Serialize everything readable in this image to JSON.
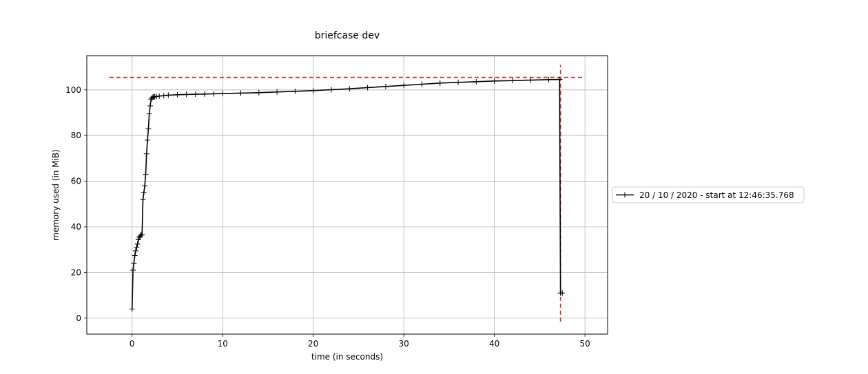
{
  "chart_data": {
    "type": "line",
    "title": "briefcase dev",
    "xlabel": "time (in seconds)",
    "ylabel": "memory used (in MiB)",
    "xlim": [
      -5,
      52.5
    ],
    "ylim": [
      -7,
      115
    ],
    "xticks": [
      0,
      10,
      20,
      30,
      40,
      50
    ],
    "yticks": [
      0,
      20,
      40,
      60,
      80,
      100
    ],
    "grid": true,
    "legend": {
      "position": "right",
      "entries": [
        "20 / 10 / 2020 - start at 12:46:35.768"
      ]
    },
    "colors": {
      "series": "#000000",
      "reference": "#d62728",
      "grid": "#b0b0b0"
    },
    "series": [
      {
        "name": "20 / 10 / 2020 - start at 12:46:35.768",
        "marker": "plus",
        "x": [
          0.0,
          0.1,
          0.2,
          0.3,
          0.4,
          0.5,
          0.6,
          0.7,
          0.8,
          0.9,
          1.0,
          1.1,
          1.2,
          1.3,
          1.4,
          1.5,
          1.6,
          1.7,
          1.8,
          1.9,
          2.0,
          2.1,
          2.2,
          2.3,
          2.4,
          2.5,
          2.7,
          3.0,
          3.5,
          4.0,
          5.0,
          6.0,
          7.0,
          8.0,
          9.0,
          10.0,
          12.0,
          14.0,
          16.0,
          18.0,
          20.0,
          22.0,
          24.0,
          26.0,
          28.0,
          30.0,
          32.0,
          34.0,
          36.0,
          38.0,
          40.0,
          42.0,
          44.0,
          46.0,
          47.2,
          47.3,
          47.5
        ],
        "y": [
          4.0,
          21.0,
          24.0,
          27.5,
          29.5,
          31.0,
          32.5,
          34.5,
          35.5,
          36.0,
          36.5,
          36.5,
          52.0,
          55.0,
          58.0,
          63.0,
          72.0,
          78.0,
          83.0,
          89.5,
          93.0,
          96.0,
          96.5,
          96.8,
          97.0,
          97.0,
          97.1,
          97.3,
          97.5,
          97.7,
          97.9,
          98.0,
          98.1,
          98.2,
          98.3,
          98.4,
          98.6,
          98.8,
          99.1,
          99.4,
          99.7,
          100.1,
          100.5,
          101.0,
          101.5,
          102.0,
          102.5,
          103.0,
          103.3,
          103.6,
          103.9,
          104.1,
          104.3,
          104.5,
          104.6,
          11.0,
          11.0
        ]
      }
    ],
    "reference_lines": [
      {
        "orientation": "horizontal",
        "value": 105.5,
        "from": -2.5,
        "to": 50.0
      },
      {
        "orientation": "vertical",
        "value": 47.3,
        "from": -1.5,
        "to": 111.0
      }
    ]
  }
}
